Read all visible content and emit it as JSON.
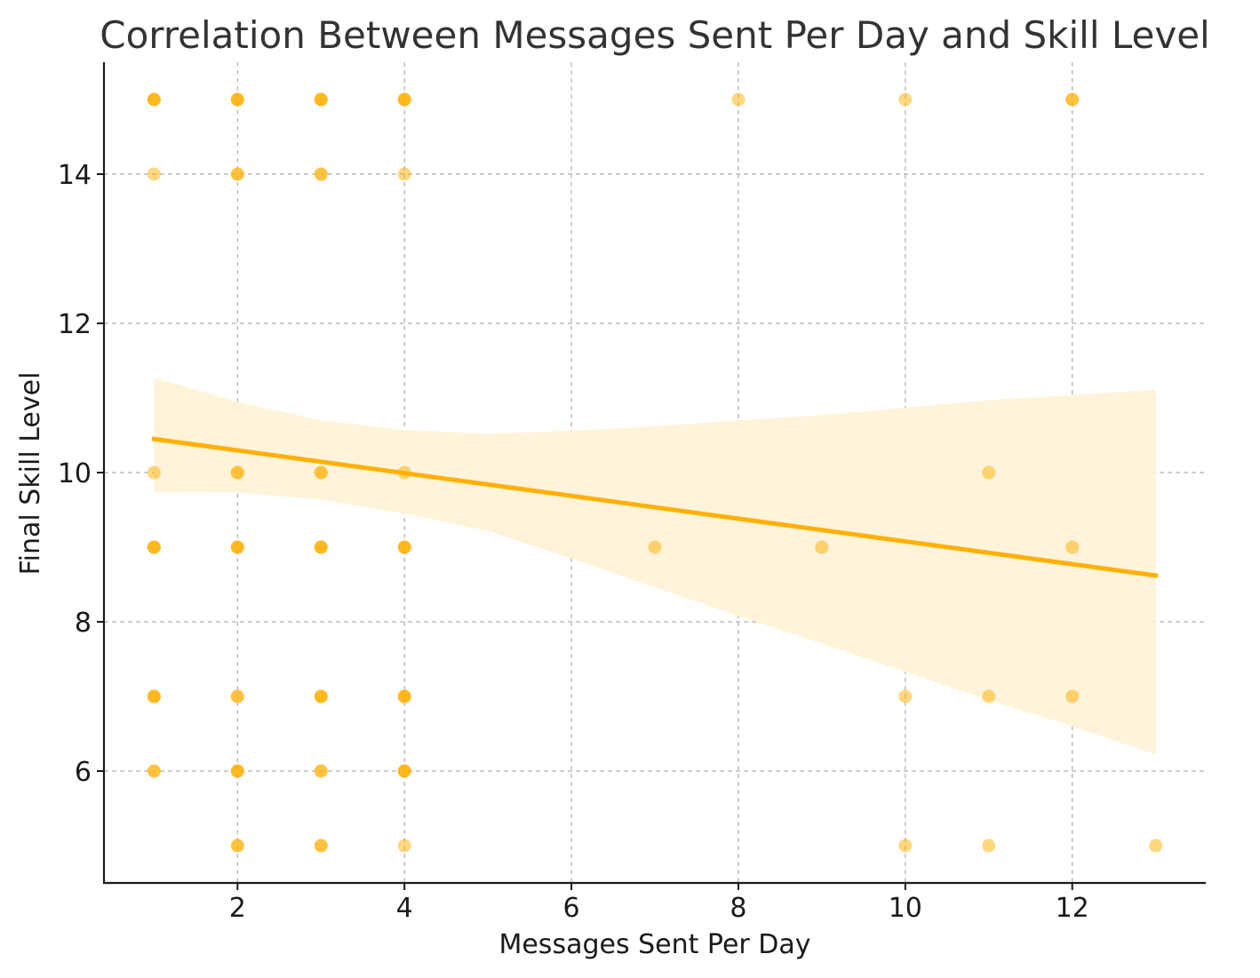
{
  "chart_data": {
    "type": "scatter",
    "title": "Correlation Between Messages Sent Per Day and Skill Level",
    "xlabel": "Messages Sent Per Day",
    "ylabel": "Final Skill Level",
    "xlim": [
      0.4,
      13.6
    ],
    "ylim": [
      4.5,
      15.5
    ],
    "xticks": [
      2,
      4,
      6,
      8,
      10,
      12
    ],
    "yticks": [
      6,
      8,
      10,
      12,
      14
    ],
    "grid": true,
    "color": "#FFB000",
    "band_color": "#FFF3D9",
    "points": [
      {
        "x": 1,
        "y": 15
      },
      {
        "x": 1,
        "y": 15
      },
      {
        "x": 1,
        "y": 15
      },
      {
        "x": 1,
        "y": 14
      },
      {
        "x": 1,
        "y": 10
      },
      {
        "x": 1,
        "y": 9
      },
      {
        "x": 1,
        "y": 9
      },
      {
        "x": 1,
        "y": 9
      },
      {
        "x": 1,
        "y": 7
      },
      {
        "x": 1,
        "y": 7
      },
      {
        "x": 1,
        "y": 7
      },
      {
        "x": 1,
        "y": 6
      },
      {
        "x": 1,
        "y": 6
      },
      {
        "x": 2,
        "y": 15
      },
      {
        "x": 2,
        "y": 15
      },
      {
        "x": 2,
        "y": 15
      },
      {
        "x": 2,
        "y": 14
      },
      {
        "x": 2,
        "y": 14
      },
      {
        "x": 2,
        "y": 10
      },
      {
        "x": 2,
        "y": 10
      },
      {
        "x": 2,
        "y": 9
      },
      {
        "x": 2,
        "y": 9
      },
      {
        "x": 2,
        "y": 9
      },
      {
        "x": 2,
        "y": 7
      },
      {
        "x": 2,
        "y": 7
      },
      {
        "x": 2,
        "y": 6
      },
      {
        "x": 2,
        "y": 6
      },
      {
        "x": 2,
        "y": 6
      },
      {
        "x": 2,
        "y": 5
      },
      {
        "x": 2,
        "y": 5
      },
      {
        "x": 3,
        "y": 15
      },
      {
        "x": 3,
        "y": 15
      },
      {
        "x": 3,
        "y": 15
      },
      {
        "x": 3,
        "y": 14
      },
      {
        "x": 3,
        "y": 14
      },
      {
        "x": 3,
        "y": 10
      },
      {
        "x": 3,
        "y": 10
      },
      {
        "x": 3,
        "y": 9
      },
      {
        "x": 3,
        "y": 9
      },
      {
        "x": 3,
        "y": 9
      },
      {
        "x": 3,
        "y": 7
      },
      {
        "x": 3,
        "y": 7
      },
      {
        "x": 3,
        "y": 7
      },
      {
        "x": 3,
        "y": 6
      },
      {
        "x": 3,
        "y": 6
      },
      {
        "x": 3,
        "y": 5
      },
      {
        "x": 3,
        "y": 5
      },
      {
        "x": 4,
        "y": 15
      },
      {
        "x": 4,
        "y": 15
      },
      {
        "x": 4,
        "y": 15
      },
      {
        "x": 4,
        "y": 14
      },
      {
        "x": 4,
        "y": 10
      },
      {
        "x": 4,
        "y": 9
      },
      {
        "x": 4,
        "y": 9
      },
      {
        "x": 4,
        "y": 9
      },
      {
        "x": 4,
        "y": 7
      },
      {
        "x": 4,
        "y": 7
      },
      {
        "x": 4,
        "y": 7
      },
      {
        "x": 4,
        "y": 6
      },
      {
        "x": 4,
        "y": 6
      },
      {
        "x": 4,
        "y": 6
      },
      {
        "x": 4,
        "y": 5
      },
      {
        "x": 7,
        "y": 9
      },
      {
        "x": 8,
        "y": 15
      },
      {
        "x": 9,
        "y": 9
      },
      {
        "x": 10,
        "y": 15
      },
      {
        "x": 10,
        "y": 7
      },
      {
        "x": 10,
        "y": 5
      },
      {
        "x": 11,
        "y": 10
      },
      {
        "x": 11,
        "y": 7
      },
      {
        "x": 11,
        "y": 5
      },
      {
        "x": 12,
        "y": 15
      },
      {
        "x": 12,
        "y": 15
      },
      {
        "x": 12,
        "y": 9
      },
      {
        "x": 12,
        "y": 7
      },
      {
        "x": 13,
        "y": 5
      }
    ],
    "regression": {
      "x": [
        1,
        13
      ],
      "y": [
        10.45,
        8.62
      ]
    },
    "confidence_band": [
      {
        "x": 1,
        "lower": 9.74,
        "upper": 11.27
      },
      {
        "x": 2,
        "lower": 9.73,
        "upper": 10.95
      },
      {
        "x": 3,
        "lower": 9.64,
        "upper": 10.7
      },
      {
        "x": 4,
        "lower": 9.45,
        "upper": 10.57
      },
      {
        "x": 5,
        "lower": 9.22,
        "upper": 10.52
      },
      {
        "x": 6,
        "lower": 8.85,
        "upper": 10.56
      },
      {
        "x": 7,
        "lower": 8.46,
        "upper": 10.62
      },
      {
        "x": 8,
        "lower": 8.08,
        "upper": 10.7
      },
      {
        "x": 9,
        "lower": 7.71,
        "upper": 10.77
      },
      {
        "x": 10,
        "lower": 7.33,
        "upper": 10.87
      },
      {
        "x": 11,
        "lower": 6.95,
        "upper": 10.97
      },
      {
        "x": 12,
        "lower": 6.6,
        "upper": 11.04
      },
      {
        "x": 13,
        "lower": 6.22,
        "upper": 11.11
      }
    ]
  }
}
